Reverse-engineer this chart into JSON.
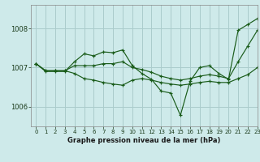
{
  "bg_color": "#ceeaea",
  "grid_color": "#aacccc",
  "line_color": "#1a5c1a",
  "title": "Graphe pression niveau de la mer (hPa)",
  "xlim": [
    -0.5,
    23
  ],
  "ylim": [
    1005.5,
    1008.6
  ],
  "yticks": [
    1006,
    1007,
    1008
  ],
  "xticks": [
    0,
    1,
    2,
    3,
    4,
    5,
    6,
    7,
    8,
    9,
    10,
    11,
    12,
    13,
    14,
    15,
    16,
    17,
    18,
    19,
    20,
    21,
    22,
    23
  ],
  "series": [
    [
      1007.1,
      1006.9,
      1006.9,
      1006.9,
      1007.15,
      1007.35,
      1007.3,
      1007.4,
      1007.38,
      1007.45,
      1007.05,
      1006.85,
      1006.7,
      1006.4,
      1006.35,
      1005.78,
      1006.65,
      1007.0,
      1007.05,
      1006.85,
      1006.7,
      1007.95,
      1008.1,
      1008.25
    ],
    [
      1007.1,
      1006.92,
      1006.92,
      1006.92,
      1007.05,
      1007.05,
      1007.05,
      1007.1,
      1007.1,
      1007.15,
      1007.0,
      1006.95,
      1006.88,
      1006.78,
      1006.72,
      1006.68,
      1006.72,
      1006.78,
      1006.82,
      1006.78,
      1006.72,
      1007.15,
      1007.55,
      1007.95
    ],
    [
      1007.1,
      1006.92,
      1006.92,
      1006.92,
      1006.85,
      1006.72,
      1006.68,
      1006.62,
      1006.58,
      1006.55,
      1006.68,
      1006.72,
      1006.68,
      1006.62,
      1006.58,
      1006.55,
      1006.58,
      1006.62,
      1006.65,
      1006.62,
      1006.62,
      1006.72,
      1006.82,
      1007.0
    ]
  ]
}
